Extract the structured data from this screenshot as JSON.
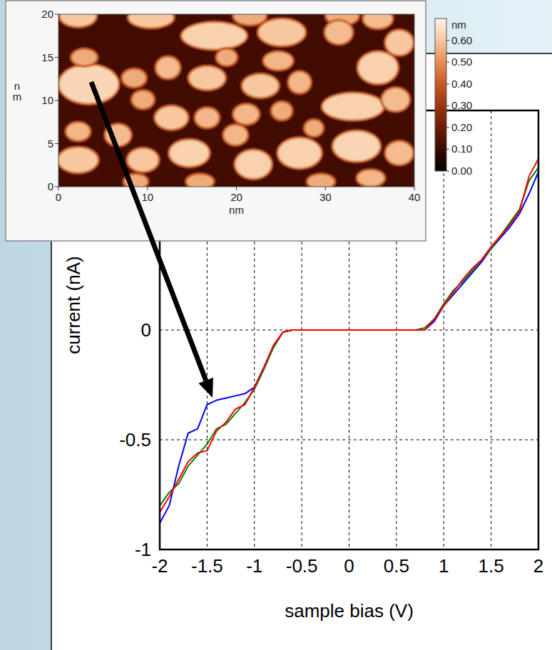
{
  "chart_data": [
    {
      "type": "line",
      "xlabel": "sample bias (V)",
      "ylabel": "current (nA)",
      "x": [
        -2,
        -1.9,
        -1.8,
        -1.7,
        -1.6,
        -1.5,
        -1.4,
        -1.3,
        -1.2,
        -1.1,
        -1,
        -0.9,
        -0.8,
        -0.7,
        -0.6,
        -0.5,
        -0.4,
        -0.3,
        -0.2,
        -0.1,
        0,
        0.1,
        0.2,
        0.3,
        0.4,
        0.5,
        0.6,
        0.7,
        0.8,
        0.9,
        1,
        1.1,
        1.2,
        1.3,
        1.4,
        1.5,
        1.6,
        1.7,
        1.8,
        1.9,
        2
      ],
      "xlim": [
        -2,
        2
      ],
      "ylim": [
        -1,
        1
      ],
      "xticks": [
        -2,
        -1.5,
        -1,
        -0.5,
        0,
        0.5,
        1,
        1.5,
        2
      ],
      "yticks": [
        -1,
        -0.5,
        0
      ],
      "grid": true,
      "series": [
        {
          "color": "#0000ff",
          "values": [
            -0.88,
            -0.8,
            -0.62,
            -0.47,
            -0.45,
            -0.34,
            -0.32,
            -0.31,
            -0.3,
            -0.29,
            -0.26,
            -0.17,
            -0.08,
            -0.01,
            0,
            0,
            0,
            0,
            0,
            0,
            0,
            0,
            0,
            0,
            0,
            0,
            0,
            0,
            0,
            0.04,
            0.11,
            0.16,
            0.21,
            0.26,
            0.31,
            0.37,
            0.42,
            0.47,
            0.53,
            0.62,
            0.72
          ]
        },
        {
          "color": "#008000",
          "values": [
            -0.8,
            -0.74,
            -0.7,
            -0.62,
            -0.57,
            -0.52,
            -0.45,
            -0.43,
            -0.38,
            -0.33,
            -0.27,
            -0.18,
            -0.08,
            -0.01,
            0,
            0,
            0,
            0,
            0,
            0,
            0,
            0,
            0,
            0,
            0,
            0,
            0,
            0,
            0.01,
            0.05,
            0.12,
            0.18,
            0.22,
            0.27,
            0.32,
            0.37,
            0.43,
            0.49,
            0.55,
            0.68,
            0.74
          ]
        },
        {
          "color": "#ff0000",
          "values": [
            -0.83,
            -0.76,
            -0.68,
            -0.6,
            -0.56,
            -0.55,
            -0.46,
            -0.42,
            -0.36,
            -0.34,
            -0.26,
            -0.17,
            -0.07,
            -0.01,
            0,
            0,
            0,
            0,
            0,
            0,
            0,
            0,
            0,
            0,
            0,
            0,
            0,
            0,
            0,
            0.05,
            0.11,
            0.17,
            0.23,
            0.28,
            0.32,
            0.38,
            0.43,
            0.48,
            0.54,
            0.7,
            0.78
          ]
        }
      ]
    },
    {
      "type": "image",
      "xlabel": "nm",
      "ylabel": "nm",
      "xlim": [
        0,
        40
      ],
      "ylim": [
        0,
        20
      ],
      "xticks": [
        0,
        10,
        20,
        30,
        40
      ],
      "yticks": [
        0,
        5,
        10,
        15,
        20
      ],
      "background_z": 0.12,
      "islands": [
        {
          "x": 2.2,
          "y": 19.8,
          "rx": 2,
          "ry": 1.2,
          "z": 0.6
        },
        {
          "x": 10.4,
          "y": 19.6,
          "rx": 2.5,
          "ry": 1.1,
          "z": 0.6
        },
        {
          "x": 17.5,
          "y": 17.5,
          "rx": 3.6,
          "ry": 1.5,
          "z": 0.62
        },
        {
          "x": 21.5,
          "y": 19.8,
          "rx": 1.8,
          "ry": 1,
          "z": 0.55
        },
        {
          "x": 25.1,
          "y": 17.9,
          "rx": 2.6,
          "ry": 1.5,
          "z": 0.6
        },
        {
          "x": 31.9,
          "y": 19.8,
          "rx": 1.8,
          "ry": 1,
          "z": 0.55
        },
        {
          "x": 31.5,
          "y": 17.9,
          "rx": 1.5,
          "ry": 1.3,
          "z": 0.58
        },
        {
          "x": 35.9,
          "y": 19.5,
          "rx": 1.6,
          "ry": 1.1,
          "z": 0.58
        },
        {
          "x": 38.3,
          "y": 16.7,
          "rx": 1.5,
          "ry": 1.4,
          "z": 0.6
        },
        {
          "x": 3.4,
          "y": 11.9,
          "rx": 3.3,
          "ry": 2.2,
          "z": 0.63
        },
        {
          "x": 2.9,
          "y": 15,
          "rx": 1.4,
          "ry": 0.9,
          "z": 0.55
        },
        {
          "x": 8.5,
          "y": 12.6,
          "rx": 1.3,
          "ry": 1,
          "z": 0.55
        },
        {
          "x": 12.3,
          "y": 13.8,
          "rx": 1.3,
          "ry": 1.2,
          "z": 0.58
        },
        {
          "x": 16.7,
          "y": 12.6,
          "rx": 2,
          "ry": 1.3,
          "z": 0.6
        },
        {
          "x": 18.9,
          "y": 15,
          "rx": 1.1,
          "ry": 0.9,
          "z": 0.55
        },
        {
          "x": 22.7,
          "y": 11.7,
          "rx": 2,
          "ry": 1.3,
          "z": 0.6
        },
        {
          "x": 24.7,
          "y": 14.6,
          "rx": 1.6,
          "ry": 1,
          "z": 0.57
        },
        {
          "x": 27.1,
          "y": 12.1,
          "rx": 1.2,
          "ry": 1.2,
          "z": 0.57
        },
        {
          "x": 33.1,
          "y": 9.3,
          "rx": 3.4,
          "ry": 1.5,
          "z": 0.62
        },
        {
          "x": 35.9,
          "y": 13.8,
          "rx": 2.2,
          "ry": 1.8,
          "z": 0.62
        },
        {
          "x": 37.9,
          "y": 10.1,
          "rx": 1.5,
          "ry": 1.3,
          "z": 0.58
        },
        {
          "x": 9.5,
          "y": 10.1,
          "rx": 1.2,
          "ry": 1,
          "z": 0.55
        },
        {
          "x": 12.7,
          "y": 8,
          "rx": 1.8,
          "ry": 1.3,
          "z": 0.6
        },
        {
          "x": 16.7,
          "y": 8,
          "rx": 1.3,
          "ry": 1.1,
          "z": 0.57
        },
        {
          "x": 21.1,
          "y": 8.4,
          "rx": 1.4,
          "ry": 1.1,
          "z": 0.57
        },
        {
          "x": 25.1,
          "y": 8.8,
          "rx": 1.1,
          "ry": 1,
          "z": 0.55
        },
        {
          "x": 2.2,
          "y": 6.4,
          "rx": 1.3,
          "ry": 1,
          "z": 0.57
        },
        {
          "x": 6.7,
          "y": 6,
          "rx": 1.4,
          "ry": 1.2,
          "z": 0.58
        },
        {
          "x": 2.2,
          "y": 3.1,
          "rx": 2.2,
          "ry": 1.4,
          "z": 0.6
        },
        {
          "x": 9.5,
          "y": 3.1,
          "rx": 1.7,
          "ry": 1.3,
          "z": 0.6
        },
        {
          "x": 14.7,
          "y": 3.9,
          "rx": 2.2,
          "ry": 1.5,
          "z": 0.62
        },
        {
          "x": 19.9,
          "y": 6,
          "rx": 1.3,
          "ry": 1.1,
          "z": 0.57
        },
        {
          "x": 21.9,
          "y": 2.6,
          "rx": 2,
          "ry": 1.6,
          "z": 0.62
        },
        {
          "x": 27.1,
          "y": 3.9,
          "rx": 2.4,
          "ry": 1.7,
          "z": 0.62
        },
        {
          "x": 33.5,
          "y": 4.7,
          "rx": 2.6,
          "ry": 1.7,
          "z": 0.63
        },
        {
          "x": 28.7,
          "y": 6.8,
          "rx": 1,
          "ry": 0.9,
          "z": 0.55
        },
        {
          "x": 38.3,
          "y": 3.9,
          "rx": 1.5,
          "ry": 1.3,
          "z": 0.58
        },
        {
          "x": 8.7,
          "y": 0.6,
          "rx": 1.3,
          "ry": 0.8,
          "z": 0.55
        },
        {
          "x": 15.9,
          "y": 0.6,
          "rx": 1.5,
          "ry": 0.8,
          "z": 0.55
        },
        {
          "x": 29.5,
          "y": 0.6,
          "rx": 1.5,
          "ry": 0.8,
          "z": 0.55
        },
        {
          "x": 35.1,
          "y": 1,
          "rx": 1.5,
          "ry": 0.9,
          "z": 0.57
        }
      ],
      "zlim": [
        0,
        0.7
      ],
      "zticks": [
        {
          "value": 0,
          "label": "0.00"
        },
        {
          "value": 0.1,
          "label": "0.10"
        },
        {
          "value": 0.2,
          "label": "0.20"
        },
        {
          "value": 0.3,
          "label": "0.30"
        },
        {
          "value": 0.4,
          "label": "0.40"
        },
        {
          "value": 0.5,
          "label": "0.50"
        },
        {
          "value": 0.6,
          "label": "0.60"
        }
      ],
      "colorbar_label": "nm"
    }
  ]
}
